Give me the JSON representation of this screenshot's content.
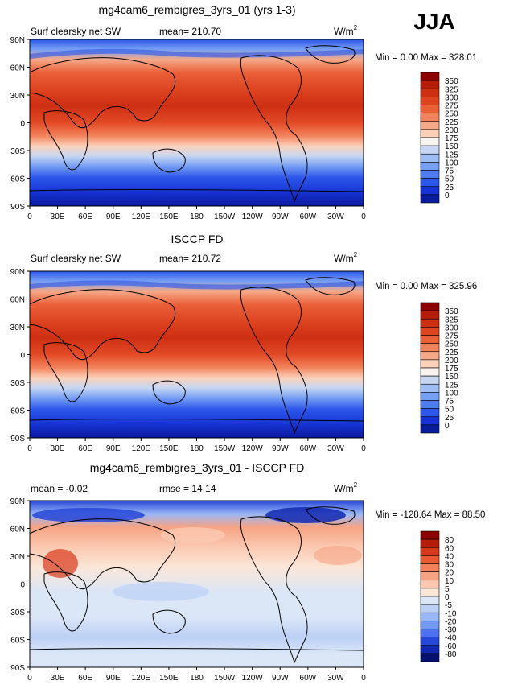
{
  "chart_data": {
    "season": "JJA",
    "type": "heatmap",
    "x_ticks": [
      "0",
      "30E",
      "60E",
      "90E",
      "120E",
      "150E",
      "180",
      "150W",
      "120W",
      "90W",
      "60W",
      "30W",
      "0"
    ],
    "y_ticks": [
      "90N",
      "60N",
      "30N",
      "0",
      "30S",
      "60S",
      "90S"
    ],
    "panels": [
      {
        "title": "mg4cam6_rembigres_3yrs_01 (yrs 1-3)",
        "left_label": "Surf clearsky net SW",
        "center_label": "mean= 210.70",
        "units_base": "W/m",
        "units_exp": "2",
        "min_max": "Min =    0.00 Max = 328.01",
        "scale": "absolute",
        "levels": [
          "350",
          "325",
          "300",
          "275",
          "250",
          "225",
          "200",
          "175",
          "150",
          "125",
          "100",
          "75",
          "50",
          "25",
          "0"
        ],
        "colors": [
          "#8b0000",
          "#b51d0a",
          "#cd2f13",
          "#dd4420",
          "#ea6039",
          "#f2845d",
          "#f6a989",
          "#fbd1ba",
          "#f7f3f0",
          "#c7d7f3",
          "#9ebdf5",
          "#779ff3",
          "#4f7df0",
          "#2c57ea",
          "#1732d4",
          "#0a1b9c"
        ]
      },
      {
        "title": "ISCCP FD",
        "left_label": "Surf clearsky net SW",
        "center_label": "mean= 210.72",
        "units_base": "W/m",
        "units_exp": "2",
        "min_max": "Min =    0.00 Max = 325.96",
        "scale": "absolute",
        "levels": [
          "350",
          "325",
          "300",
          "275",
          "250",
          "225",
          "200",
          "175",
          "150",
          "125",
          "100",
          "75",
          "50",
          "25",
          "0"
        ],
        "colors": [
          "#8b0000",
          "#b51d0a",
          "#cd2f13",
          "#dd4420",
          "#ea6039",
          "#f2845d",
          "#f6a989",
          "#fbd1ba",
          "#f7f3f0",
          "#c7d7f3",
          "#9ebdf5",
          "#779ff3",
          "#4f7df0",
          "#2c57ea",
          "#1732d4",
          "#0a1b9c"
        ]
      },
      {
        "title": "mg4cam6_rembigres_3yrs_01 - ISCCP FD",
        "left_label": "mean =  -0.02",
        "center_label": "rmse =  14.14",
        "units_base": "W/m",
        "units_exp": "2",
        "min_max": "Min = -128.64 Max =  88.50",
        "scale": "difference",
        "levels": [
          "80",
          "60",
          "40",
          "30",
          "20",
          "10",
          "5",
          "0",
          "-5",
          "-10",
          "-20",
          "-30",
          "-40",
          "-60",
          "-80"
        ],
        "colors": [
          "#8b0000",
          "#b51d0a",
          "#d8381a",
          "#e85a33",
          "#f28058",
          "#f6a383",
          "#fbc9b2",
          "#fbe6d8",
          "#dbe6f7",
          "#bcd0f6",
          "#9ab7f5",
          "#7598f3",
          "#4d73ee",
          "#2747d8",
          "#1228b0",
          "#06106e"
        ]
      }
    ]
  }
}
